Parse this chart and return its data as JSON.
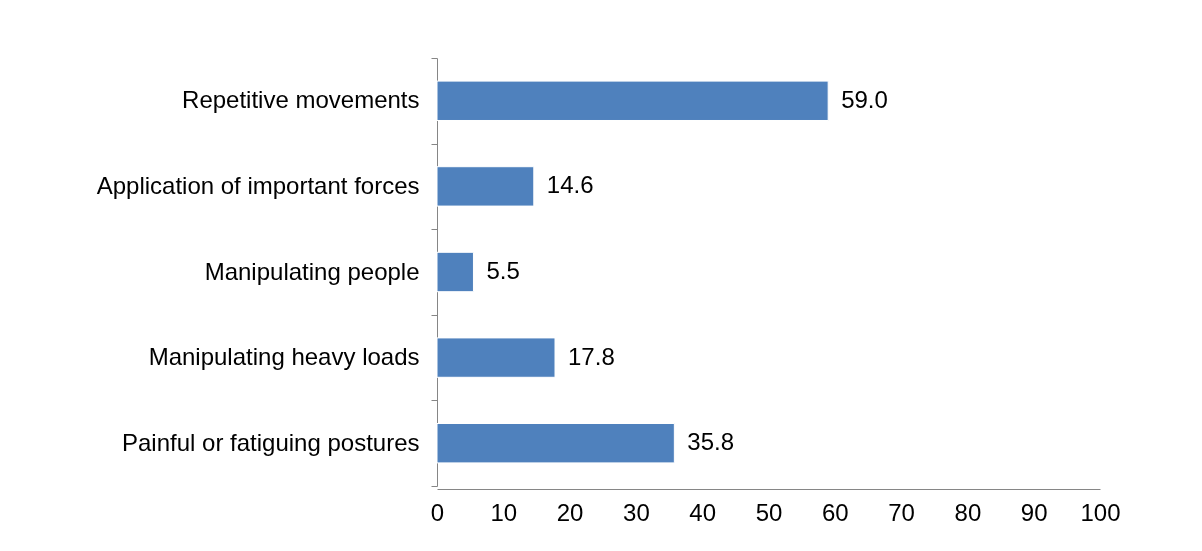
{
  "chart_data": {
    "type": "bar",
    "orientation": "horizontal",
    "categories": [
      "Repetitive movements",
      "Application of important forces",
      "Manipulating people",
      "Manipulating heavy loads",
      "Painful or fatiguing postures"
    ],
    "values": [
      59.0,
      14.6,
      5.5,
      17.8,
      35.8
    ],
    "value_labels": [
      "59.0",
      "14.6",
      "5.5",
      "17.8",
      "35.8"
    ],
    "color": "#4f81bd",
    "xlim": [
      0,
      100
    ],
    "xticks": [
      0,
      10,
      20,
      30,
      40,
      50,
      60,
      70,
      80,
      90,
      100
    ],
    "grid": false
  }
}
